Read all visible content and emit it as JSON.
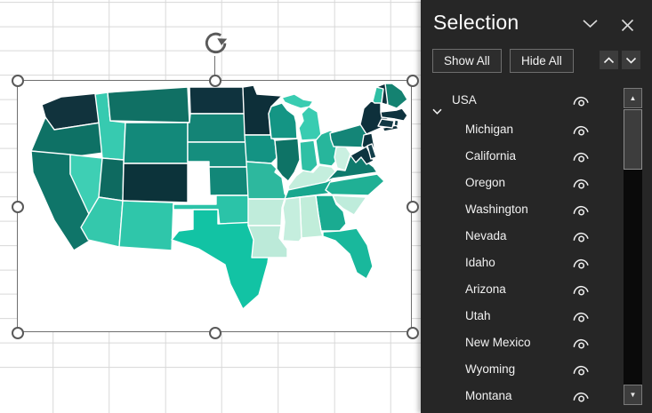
{
  "selection_pane": {
    "title": "Selection",
    "show_all_label": "Show All",
    "hide_all_label": "Hide All",
    "items": [
      {
        "label": "USA",
        "level": 0,
        "expandable": true,
        "expanded": true,
        "visible": true
      },
      {
        "label": "Michigan",
        "level": 1,
        "visible": true
      },
      {
        "label": "California",
        "level": 1,
        "visible": true
      },
      {
        "label": "Oregon",
        "level": 1,
        "visible": true
      },
      {
        "label": "Washington",
        "level": 1,
        "visible": true
      },
      {
        "label": "Nevada",
        "level": 1,
        "visible": true
      },
      {
        "label": "Idaho",
        "level": 1,
        "visible": true
      },
      {
        "label": "Arizona",
        "level": 1,
        "visible": true
      },
      {
        "label": "Utah",
        "level": 1,
        "visible": true
      },
      {
        "label": "New Mexico",
        "level": 1,
        "visible": true
      },
      {
        "label": "Wyoming",
        "level": 1,
        "visible": true
      },
      {
        "label": "Montana",
        "level": 1,
        "visible": true
      }
    ]
  },
  "icons": {
    "pane_collapse": "chevron-down",
    "pane_close": "close-x",
    "reorder_up": "chevron-up",
    "reorder_down": "chevron-down",
    "visibility": "eye",
    "expand": "chevron-down",
    "rotate_handle": "rotate-arrow",
    "scrollbar_up": "▲",
    "scrollbar_down": "▼"
  },
  "colors": {
    "pane_bg": "#262626",
    "pane_text": "#f1f1f1",
    "gridline": "#d8d8d8",
    "selection_outline": "#6f6f6f",
    "state_border": "#ffffff"
  },
  "chart_data": {
    "type": "choropleth-map",
    "region": "USA (lower 48 states)",
    "selected": true,
    "color_scale": [
      "#0d2f39",
      "#0e7165",
      "#148577",
      "#2fc6aa",
      "#c4eedd"
    ],
    "states": [
      {
        "name": "Washington",
        "color": "#11333d"
      },
      {
        "name": "Oregon",
        "color": "#0e7165"
      },
      {
        "name": "California",
        "color": "#0f7569"
      },
      {
        "name": "Nevada",
        "color": "#3ecfb4"
      },
      {
        "name": "Idaho",
        "color": "#37cab0"
      },
      {
        "name": "Montana",
        "color": "#107064"
      },
      {
        "name": "Wyoming",
        "color": "#13897a"
      },
      {
        "name": "Utah",
        "color": "#0e6a60"
      },
      {
        "name": "Colorado",
        "color": "#0c333a"
      },
      {
        "name": "Arizona",
        "color": "#34c8ac"
      },
      {
        "name": "New Mexico",
        "color": "#2fc6aa"
      },
      {
        "name": "North Dakota",
        "color": "#0f333e"
      },
      {
        "name": "South Dakota",
        "color": "#148476"
      },
      {
        "name": "Nebraska",
        "color": "#158e7e"
      },
      {
        "name": "Kansas",
        "color": "#128778"
      },
      {
        "name": "Oklahoma",
        "color": "#2bc3a8"
      },
      {
        "name": "Texas",
        "color": "#12c3a4"
      },
      {
        "name": "Minnesota",
        "color": "#0d2f39"
      },
      {
        "name": "Iowa",
        "color": "#139383"
      },
      {
        "name": "Missouri",
        "color": "#2db89e"
      },
      {
        "name": "Arkansas",
        "color": "#c0ecdb"
      },
      {
        "name": "Louisiana",
        "color": "#bcead9"
      },
      {
        "name": "Wisconsin",
        "color": "#149584"
      },
      {
        "name": "Illinois",
        "color": "#0e7366"
      },
      {
        "name": "Michigan",
        "color": "#39ccb1"
      },
      {
        "name": "Indiana",
        "color": "#2fc0a5"
      },
      {
        "name": "Ohio",
        "color": "#27b69c"
      },
      {
        "name": "Kentucky",
        "color": "#c4eedd"
      },
      {
        "name": "Tennessee",
        "color": "#18a78e"
      },
      {
        "name": "West Virginia",
        "color": "#caf0e1"
      },
      {
        "name": "Virginia",
        "color": "#0f7a6d"
      },
      {
        "name": "North Carolina",
        "color": "#20b095"
      },
      {
        "name": "South Carolina",
        "color": "#beecdb"
      },
      {
        "name": "Georgia",
        "color": "#1aab91"
      },
      {
        "name": "Alabama",
        "color": "#c1edda"
      },
      {
        "name": "Mississippi",
        "color": "#c5eede"
      },
      {
        "name": "Florida",
        "color": "#19b89c"
      },
      {
        "name": "Pennsylvania",
        "color": "#148577"
      },
      {
        "name": "New York",
        "color": "#0e303b"
      },
      {
        "name": "New Jersey",
        "color": "#0d333d"
      },
      {
        "name": "Maryland",
        "color": "#0e3540"
      },
      {
        "name": "Delaware",
        "color": "#123f4a"
      },
      {
        "name": "Connecticut",
        "color": "#113844"
      },
      {
        "name": "Rhode Island",
        "color": "#123c47"
      },
      {
        "name": "Massachusetts",
        "color": "#0e333e"
      },
      {
        "name": "Vermont",
        "color": "#2fbfa4"
      },
      {
        "name": "New Hampshire",
        "color": "#0f333d"
      },
      {
        "name": "Maine",
        "color": "#148271"
      }
    ]
  }
}
